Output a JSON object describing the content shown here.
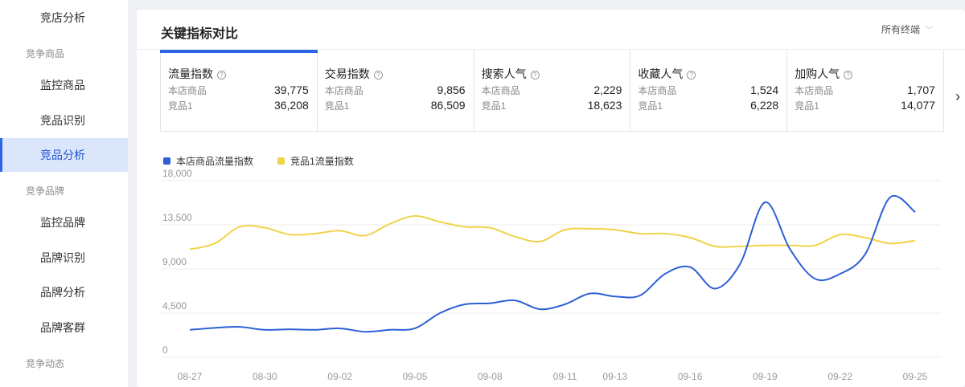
{
  "sidebar": {
    "items": [
      {
        "label": "竞店分析",
        "active": false
      },
      {
        "group": "竞争商品"
      },
      {
        "label": "监控商品",
        "active": false
      },
      {
        "label": "竞品识别",
        "active": false
      },
      {
        "label": "竞品分析",
        "active": true
      },
      {
        "group": "竞争品牌"
      },
      {
        "label": "监控品牌",
        "active": false
      },
      {
        "label": "品牌识别",
        "active": false
      },
      {
        "label": "品牌分析",
        "active": false
      },
      {
        "label": "品牌客群",
        "active": false
      },
      {
        "group": "竞争动态"
      }
    ]
  },
  "panel": {
    "title": "关键指标对比",
    "terminal": "所有终端"
  },
  "metrics": [
    {
      "title": "流量指数",
      "self_label": "本店商品",
      "self_value": "39,775",
      "comp_label": "竞品1",
      "comp_value": "36,208",
      "active": true
    },
    {
      "title": "交易指数",
      "self_label": "本店商品",
      "self_value": "9,856",
      "comp_label": "竞品1",
      "comp_value": "86,509",
      "active": false
    },
    {
      "title": "搜索人气",
      "self_label": "本店商品",
      "self_value": "2,229",
      "comp_label": "竞品1",
      "comp_value": "18,623",
      "active": false
    },
    {
      "title": "收藏人气",
      "self_label": "本店商品",
      "self_value": "1,524",
      "comp_label": "竞品1",
      "comp_value": "6,228",
      "active": false
    },
    {
      "title": "加购人气",
      "self_label": "本店商品",
      "self_value": "1,707",
      "comp_label": "竞品1",
      "comp_value": "14,077",
      "active": false
    }
  ],
  "colors": {
    "accent": "#2d63e6",
    "series_self": "#2d5fd6",
    "series_comp": "#f1d34a"
  },
  "chart_data": {
    "type": "line",
    "ylim": [
      0,
      18000
    ],
    "y_ticks": [
      "0",
      "4,500",
      "9,000",
      "13,500",
      "18,000"
    ],
    "x_tick_labels": [
      "08-27",
      "08-30",
      "09-02",
      "09-05",
      "09-08",
      "09-11",
      "09-13",
      "09-16",
      "09-19",
      "09-22",
      "09-25"
    ],
    "x_tick_index": [
      0,
      3,
      6,
      9,
      12,
      15,
      17,
      20,
      23,
      26,
      29
    ],
    "legend_position": "top-left",
    "grid": true,
    "series": [
      {
        "name": "本店商品流量指数",
        "color": "#2d5fd6",
        "values": [
          2800,
          3000,
          3100,
          2800,
          2850,
          2800,
          2950,
          2600,
          2800,
          2950,
          4500,
          5400,
          5500,
          5800,
          4900,
          5400,
          6500,
          6200,
          6300,
          8500,
          9200,
          7000,
          9500,
          15800,
          11000,
          8000,
          8500,
          10500,
          16300,
          14800
        ]
      },
      {
        "name": "竞品1流量指数",
        "color": "#f1d34a",
        "values": [
          11000,
          11600,
          13300,
          13200,
          12500,
          12600,
          12900,
          12400,
          13600,
          14400,
          13800,
          13300,
          13200,
          12300,
          11800,
          13000,
          13100,
          13000,
          12600,
          12600,
          12200,
          11300,
          11300,
          11400,
          11400,
          11400,
          12500,
          12200,
          11600,
          11900
        ]
      }
    ]
  }
}
